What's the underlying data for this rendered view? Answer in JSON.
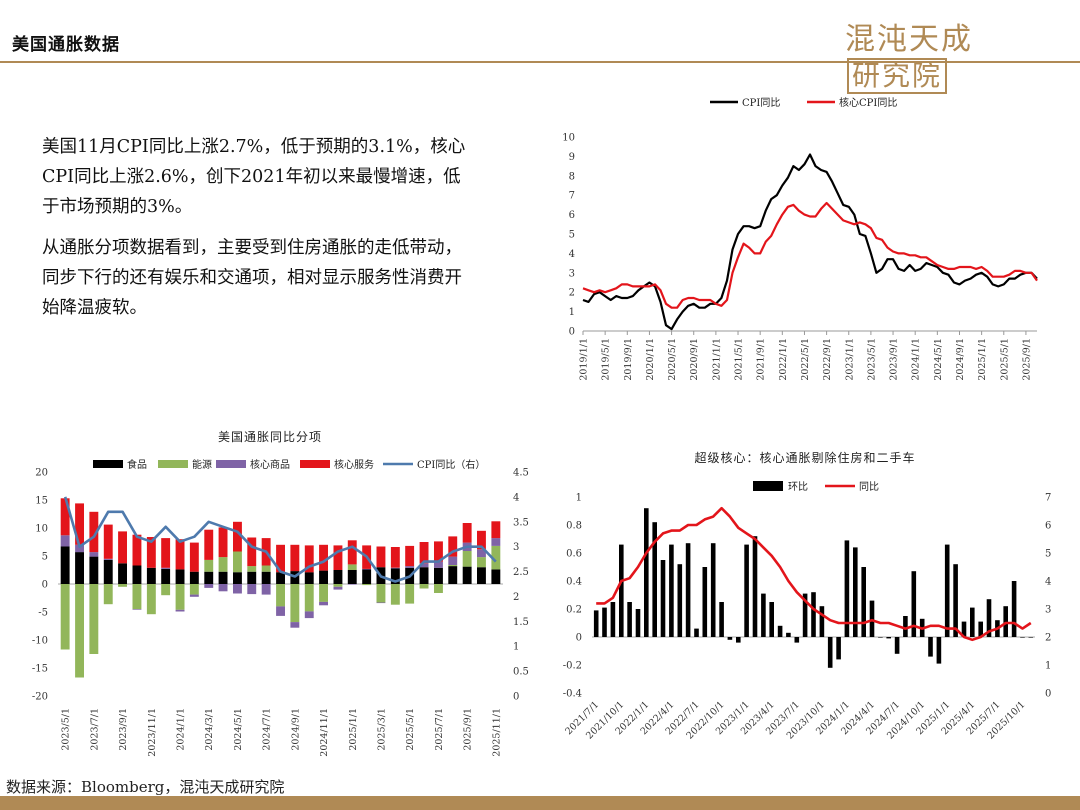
{
  "header": {
    "title": "美国通胀数据"
  },
  "brand": {
    "name_part1": "混沌天成",
    "name_part2": "研究院"
  },
  "text_blocks": [
    "美国11月CPI同比上涨2.7%，低于预期的3.1%，核心CPI同比上涨2.6%，创下2021年初以来最慢增速，低于市场预期的3%。",
    "从通胀分项数据看到，主要受到住房通胀的走低带动，同步下行的还有娱乐和交通项，相对显示服务性消费开始降温疲软。"
  ],
  "footer": {
    "source": "数据来源：Bloomberg，混沌天成研究院"
  },
  "colors": {
    "accent": "#b08a55",
    "black": "#000000",
    "red": "#e3151b",
    "green": "#92b65a",
    "purple": "#7f63a6",
    "blue": "#4e7aad"
  },
  "chart_data": [
    {
      "type": "line",
      "title": "",
      "series": [
        {
          "name": "CPI同比",
          "color": "#000000",
          "values": [
            1.6,
            1.5,
            1.9,
            2.0,
            1.8,
            1.6,
            1.8,
            1.7,
            1.7,
            1.8,
            2.1,
            2.3,
            2.5,
            2.3,
            1.5,
            0.3,
            0.1,
            0.6,
            1.0,
            1.3,
            1.4,
            1.2,
            1.2,
            1.4,
            1.4,
            1.7,
            2.6,
            4.2,
            5.0,
            5.4,
            5.4,
            5.3,
            5.4,
            6.2,
            6.8,
            7.0,
            7.5,
            7.9,
            8.5,
            8.3,
            8.6,
            9.1,
            8.5,
            8.3,
            8.2,
            7.7,
            7.1,
            6.5,
            6.4,
            6.0,
            5.0,
            4.9,
            4.0,
            3.0,
            3.2,
            3.7,
            3.7,
            3.2,
            3.1,
            3.4,
            3.1,
            3.2,
            3.5,
            3.4,
            3.3,
            3.0,
            2.9,
            2.5,
            2.4,
            2.6,
            2.7,
            2.9,
            3.0,
            2.8,
            2.4,
            2.3,
            2.4,
            2.7,
            2.7,
            2.9,
            3.0,
            3.0,
            2.7
          ]
        },
        {
          "name": "核心CPI同比",
          "color": "#e3151b",
          "values": [
            2.2,
            2.1,
            2.0,
            2.1,
            2.0,
            2.1,
            2.2,
            2.4,
            2.4,
            2.3,
            2.3,
            2.3,
            2.3,
            2.4,
            2.1,
            1.4,
            1.2,
            1.2,
            1.6,
            1.7,
            1.7,
            1.6,
            1.6,
            1.6,
            1.4,
            1.3,
            1.6,
            3.0,
            3.8,
            4.5,
            4.3,
            4.0,
            4.0,
            4.6,
            4.9,
            5.5,
            6.0,
            6.4,
            6.5,
            6.2,
            6.0,
            5.9,
            5.9,
            6.3,
            6.6,
            6.3,
            6.0,
            5.7,
            5.6,
            5.5,
            5.6,
            5.5,
            5.3,
            4.8,
            4.7,
            4.3,
            4.1,
            4.0,
            4.0,
            3.9,
            3.9,
            3.8,
            3.8,
            3.6,
            3.4,
            3.3,
            3.2,
            3.2,
            3.3,
            3.3,
            3.3,
            3.2,
            3.3,
            3.1,
            2.8,
            2.8,
            2.8,
            2.9,
            3.1,
            3.1,
            3.0,
            3.0,
            2.6
          ]
        }
      ],
      "x_ticks": [
        "2019/1/1",
        "2019/5/1",
        "2019/9/1",
        "2020/1/1",
        "2020/5/1",
        "2020/9/1",
        "2021/1/1",
        "2021/5/1",
        "2021/9/1",
        "2022/1/1",
        "2022/5/1",
        "2022/9/1",
        "2023/1/1",
        "2023/5/1",
        "2023/9/1",
        "2024/1/1",
        "2024/5/1",
        "2024/9/1",
        "2025/1/1",
        "2025/5/1",
        "2025/9/1"
      ],
      "ylim": [
        0,
        10
      ],
      "y_ticks": [
        "0",
        "1",
        "2",
        "3",
        "4",
        "5",
        "6",
        "7",
        "8",
        "9",
        "10"
      ],
      "legend": "top-center"
    },
    {
      "type": "bar",
      "subtype": "stacked_with_line",
      "title": "美国通胀同比分项",
      "categories": [
        "2023/5/1",
        "2023/6/1",
        "2023/7/1",
        "2023/8/1",
        "2023/9/1",
        "2023/10/1",
        "2023/11/1",
        "2023/12/1",
        "2024/1/1",
        "2024/2/1",
        "2024/3/1",
        "2024/4/1",
        "2024/5/1",
        "2024/6/1",
        "2024/7/1",
        "2024/8/1",
        "2024/9/1",
        "2024/10/1",
        "2024/11/1",
        "2024/12/1",
        "2025/1/1",
        "2025/2/1",
        "2025/3/1",
        "2025/4/1",
        "2025/5/1",
        "2025/6/1",
        "2025/7/1",
        "2025/8/1",
        "2025/9/1",
        "2025/10/1",
        "2025/11/1"
      ],
      "x_ticks": [
        "2023/5/1",
        "2023/7/1",
        "2023/9/1",
        "2023/11/1",
        "2024/1/1",
        "2024/3/1",
        "2024/5/1",
        "2024/7/1",
        "2024/9/1",
        "2024/11/1",
        "2025/1/1",
        "2025/3/1",
        "2025/5/1",
        "2025/7/1",
        "2025/9/1",
        "2025/11/1"
      ],
      "series": [
        {
          "name": "食品",
          "color": "#000000",
          "axis": "left",
          "values": [
            6.7,
            5.7,
            4.9,
            4.3,
            3.7,
            3.3,
            2.9,
            2.7,
            2.6,
            2.2,
            2.2,
            2.2,
            2.1,
            2.2,
            2.2,
            2.1,
            2.3,
            2.1,
            2.4,
            2.5,
            2.5,
            2.6,
            3.0,
            2.8,
            2.9,
            3.0,
            2.9,
            3.2,
            3.1,
            3.0,
            2.6
          ]
        },
        {
          "name": "能源",
          "color": "#92b65a",
          "axis": "left",
          "values": [
            -11.7,
            -16.7,
            -12.5,
            -3.6,
            -0.5,
            -4.5,
            -5.4,
            -2.0,
            -4.6,
            -1.9,
            2.1,
            2.6,
            3.7,
            1.0,
            1.1,
            -4.0,
            -6.8,
            -4.9,
            -3.2,
            -0.5,
            1.0,
            -0.2,
            -3.3,
            -3.7,
            -3.5,
            -0.8,
            -1.6,
            0.2,
            2.8,
            1.8,
            4.2
          ]
        },
        {
          "name": "核心商品",
          "color": "#7f63a6",
          "axis": "left",
          "values": [
            2.0,
            1.3,
            0.8,
            0.2,
            0.0,
            -0.1,
            0.0,
            0.2,
            -0.3,
            -0.4,
            -0.7,
            -1.3,
            -1.7,
            -1.8,
            -1.9,
            -1.7,
            -1.0,
            -1.2,
            -0.6,
            -0.5,
            -0.1,
            0.1,
            -0.1,
            0.1,
            0.3,
            0.7,
            1.1,
            1.5,
            1.5,
            1.4,
            1.4
          ]
        },
        {
          "name": "核心服务",
          "color": "#e3151b",
          "axis": "left",
          "values": [
            6.6,
            7.4,
            7.2,
            6.1,
            5.7,
            5.5,
            5.5,
            5.3,
            5.4,
            5.2,
            5.4,
            5.3,
            5.3,
            5.1,
            4.9,
            4.9,
            4.7,
            4.8,
            4.6,
            4.4,
            4.3,
            4.2,
            3.7,
            3.7,
            3.6,
            3.8,
            3.6,
            3.6,
            3.5,
            3.3,
            3.0
          ]
        },
        {
          "name": "CPI同比（右）",
          "color": "#4e7aad",
          "axis": "right",
          "values": [
            4.0,
            3.0,
            3.2,
            3.7,
            3.7,
            3.2,
            3.1,
            3.4,
            3.1,
            3.2,
            3.5,
            3.4,
            3.3,
            3.0,
            2.9,
            2.5,
            2.4,
            2.6,
            2.7,
            2.9,
            3.0,
            2.8,
            2.4,
            2.3,
            2.4,
            2.7,
            2.7,
            2.9,
            3.0,
            3.0,
            2.7
          ]
        }
      ],
      "ylim_left": [
        -20,
        20
      ],
      "y_ticks_left": [
        "-20",
        "-15",
        "-10",
        "-5",
        "0",
        "5",
        "10",
        "15",
        "20"
      ],
      "ylim_right": [
        0,
        4.5
      ],
      "y_ticks_right": [
        "0",
        "0.5",
        "1",
        "1.5",
        "2",
        "2.5",
        "3",
        "3.5",
        "4",
        "4.5"
      ],
      "legend": "top"
    },
    {
      "type": "bar",
      "subtype": "bar_with_line",
      "title": "超级核心：核心通胀剔除住房和二手车",
      "categories": [
        "2021/7/1",
        "2021/8/1",
        "2021/9/1",
        "2021/10/1",
        "2021/11/1",
        "2021/12/1",
        "2022/1/1",
        "2022/2/1",
        "2022/3/1",
        "2022/4/1",
        "2022/5/1",
        "2022/6/1",
        "2022/7/1",
        "2022/8/1",
        "2022/9/1",
        "2022/10/1",
        "2022/11/1",
        "2022/12/1",
        "2023/1/1",
        "2023/2/1",
        "2023/3/1",
        "2023/4/1",
        "2023/5/1",
        "2023/6/1",
        "2023/7/1",
        "2023/8/1",
        "2023/9/1",
        "2023/10/1",
        "2023/11/1",
        "2023/12/1",
        "2024/1/1",
        "2024/2/1",
        "2024/3/1",
        "2024/4/1",
        "2024/5/1",
        "2024/6/1",
        "2024/7/1",
        "2024/8/1",
        "2024/9/1",
        "2024/10/1",
        "2024/11/1",
        "2024/12/1",
        "2025/1/1",
        "2025/2/1",
        "2025/3/1",
        "2025/4/1",
        "2025/5/1",
        "2025/6/1",
        "2025/7/1",
        "2025/8/1",
        "2025/9/1",
        "2025/10/1",
        "2025/11/1"
      ],
      "x_ticks": [
        "2021/7/1",
        "2021/10/1",
        "2022/1/1",
        "2022/4/1",
        "2022/7/1",
        "2022/10/1",
        "2023/1/1",
        "2023/4/1",
        "2023/7/1",
        "2023/10/1",
        "2024/1/1",
        "2024/4/1",
        "2024/7/1",
        "2024/10/1",
        "2025/1/1",
        "2025/4/1",
        "2025/7/1",
        "2025/10/1"
      ],
      "series": [
        {
          "name": "环比",
          "color": "#000000",
          "axis": "left",
          "values": [
            0.19,
            0.21,
            0.25,
            0.66,
            0.25,
            0.2,
            0.92,
            0.82,
            0.55,
            0.66,
            0.52,
            0.67,
            0.06,
            0.5,
            0.67,
            0.25,
            -0.02,
            -0.04,
            0.66,
            0.72,
            0.31,
            0.25,
            0.08,
            0.03,
            -0.04,
            0.31,
            0.32,
            0.22,
            -0.22,
            -0.16,
            0.69,
            0.64,
            0.5,
            0.26,
            0.0,
            -0.01,
            -0.12,
            0.15,
            0.47,
            0.13,
            -0.14,
            -0.19,
            0.66,
            0.52,
            0.11,
            0.21,
            0.11,
            0.27,
            0.12,
            0.22,
            0.4,
            0.0,
            0.0
          ]
        },
        {
          "name": "同比",
          "color": "#e3151b",
          "axis": "right",
          "values": [
            3.2,
            3.2,
            3.4,
            4.0,
            4.1,
            4.5,
            5.0,
            5.4,
            5.7,
            5.8,
            5.8,
            6.0,
            6.0,
            6.2,
            6.3,
            6.6,
            6.3,
            5.9,
            5.7,
            5.5,
            5.2,
            4.9,
            4.5,
            4.0,
            3.6,
            3.3,
            3.0,
            2.8,
            2.6,
            2.5,
            2.5,
            2.5,
            2.5,
            2.6,
            2.5,
            2.5,
            2.4,
            2.3,
            2.4,
            2.3,
            2.4,
            2.4,
            2.3,
            2.3,
            2.0,
            1.9,
            2.0,
            2.2,
            2.3,
            2.5,
            2.5,
            2.3,
            2.5
          ]
        }
      ],
      "ylim_left": [
        -0.4,
        1
      ],
      "y_ticks_left": [
        "-0.4",
        "-0.2",
        "0",
        "0.2",
        "0.4",
        "0.6",
        "0.8",
        "1"
      ],
      "ylim_right": [
        0,
        7
      ],
      "y_ticks_right": [
        "0",
        "1",
        "2",
        "3",
        "4",
        "5",
        "6",
        "7"
      ],
      "legend": "top"
    }
  ]
}
